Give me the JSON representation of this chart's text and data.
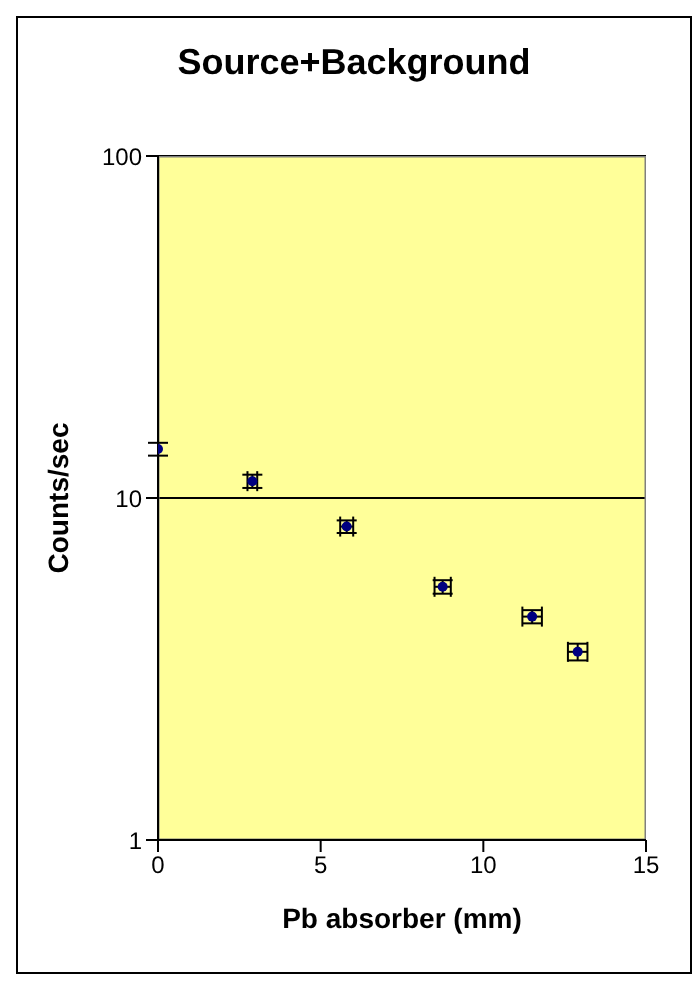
{
  "chart_data": {
    "type": "scatter",
    "title": "Source+Background",
    "xlabel": "Pb absorber (mm)",
    "ylabel": "Counts/sec",
    "x": [
      0,
      2.9,
      5.8,
      8.75,
      11.5,
      12.9
    ],
    "series": [
      {
        "color": "#000080",
        "values": [
          13.9,
          11.2,
          8.25,
          5.5,
          4.5,
          3.55
        ],
        "errors": [
          0.6,
          0.5,
          0.35,
          0.25,
          0.2,
          0.2
        ],
        "xerrors": [
          null,
          0.15,
          0.2,
          0.25,
          0.3,
          0.3
        ]
      }
    ],
    "xlim": [
      0,
      15
    ],
    "xticks": [
      0,
      5,
      10,
      15
    ],
    "ylim": [
      1,
      100
    ],
    "yticks": [
      1,
      10,
      100
    ],
    "log": "y",
    "grid": "y",
    "marker": "circle",
    "legend": false
  }
}
